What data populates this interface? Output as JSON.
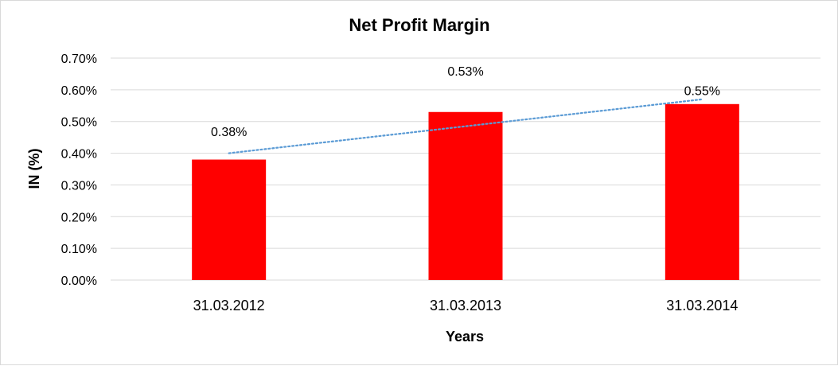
{
  "chart_data": {
    "type": "bar",
    "title": "Net Profit Margin",
    "xlabel": "Years",
    "ylabel": "IN (%)",
    "categories": [
      "31.03.2012",
      "31.03.2013",
      "31.03.2014"
    ],
    "values": [
      0.38,
      0.53,
      0.555
    ],
    "data_labels": [
      "0.38%",
      "0.53%",
      "0.55%"
    ],
    "ylim": [
      0,
      0.7
    ],
    "yticks": [
      "0.00%",
      "0.10%",
      "0.20%",
      "0.30%",
      "0.40%",
      "0.50%",
      "0.60%",
      "0.70%"
    ],
    "grid": true,
    "trendline": {
      "type": "linear",
      "style": "dotted",
      "values": [
        0.4,
        0.485,
        0.57
      ]
    },
    "colors": {
      "bar": "#ff0000",
      "trendline": "#5b9bd5",
      "grid": "#d9d9d9"
    }
  }
}
